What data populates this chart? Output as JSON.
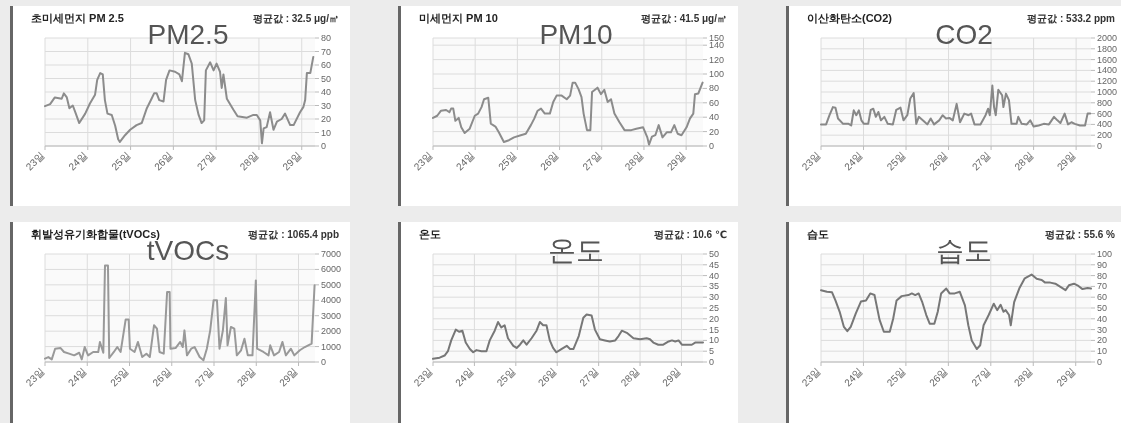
{
  "chart_data": [
    {
      "type": "line",
      "title": "초미세먼지 PM 2.5",
      "subtitle": "평균값 : 32.5 μg/㎥",
      "annotations": [
        "PM2.5"
      ],
      "xlim": [
        23,
        29.31
      ],
      "xticks": [
        {
          "value": 23,
          "label": "23일"
        },
        {
          "value": 24,
          "label": "24일"
        },
        {
          "value": 25,
          "label": "25일"
        },
        {
          "value": 26,
          "label": "26일"
        },
        {
          "value": 27,
          "label": "27일"
        },
        {
          "value": 28,
          "label": "28일"
        },
        {
          "value": 29,
          "label": "29일"
        }
      ],
      "ylim": [
        0,
        80
      ],
      "yticks": [
        0,
        10,
        20,
        30,
        40,
        50,
        60,
        70,
        80
      ],
      "grid": true,
      "x": [
        23,
        23.12,
        23.23,
        23.39,
        23.44,
        23.51,
        23.57,
        23.65,
        23.72,
        23.8,
        23.94,
        24.05,
        24.17,
        24.22,
        24.29,
        24.35,
        24.4,
        24.46,
        24.56,
        24.64,
        24.71,
        24.75,
        24.87,
        24.99,
        25.14,
        25.26,
        25.38,
        25.49,
        25.55,
        25.61,
        25.67,
        25.77,
        25.83,
        25.91,
        26.04,
        26.14,
        26.2,
        26.27,
        26.35,
        26.43,
        26.51,
        26.59,
        26.66,
        26.72,
        26.76,
        26.86,
        26.94,
        27.01,
        27.09,
        27.13,
        27.17,
        27.25,
        27.4,
        27.5,
        27.72,
        27.87,
        27.95,
        28.03,
        28.07,
        28.11,
        28.18,
        28.26,
        28.34,
        28.42,
        28.53,
        28.61,
        28.73,
        28.81,
        28.96,
        29.04,
        29.08,
        29.12,
        29.2,
        29.27
      ],
      "series": [
        {
          "color": "#8c8c8c",
          "values": [
            29.5,
            31,
            36,
            35,
            39,
            36,
            28,
            30,
            24,
            17,
            24,
            31.5,
            38,
            49,
            54,
            53,
            34,
            24,
            23,
            15,
            5,
            3,
            8,
            12,
            15.5,
            17,
            28,
            35,
            39,
            39,
            34,
            33,
            49,
            56,
            55,
            53,
            48,
            69,
            68,
            61,
            34,
            23,
            17,
            19,
            56,
            62,
            56,
            61,
            55,
            43,
            53,
            35,
            27,
            22,
            21,
            23,
            23,
            19,
            2,
            13,
            14,
            25,
            12,
            18,
            20,
            24,
            15.5,
            15.5,
            25,
            29,
            34,
            54,
            54,
            66
          ]
        }
      ]
    },
    {
      "type": "line",
      "title": "미세먼지 PM 10",
      "subtitle": "평균값 : 41.5 μg/㎥",
      "annotations": [
        "PM10"
      ],
      "xlim": [
        23,
        29.4
      ],
      "xticks": [
        {
          "value": 23,
          "label": "23일"
        },
        {
          "value": 24,
          "label": "24일"
        },
        {
          "value": 25,
          "label": "25일"
        },
        {
          "value": 26,
          "label": "26일"
        },
        {
          "value": 27,
          "label": "27일"
        },
        {
          "value": 28,
          "label": "28일"
        },
        {
          "value": 29,
          "label": "29일"
        }
      ],
      "ylim": [
        0,
        150
      ],
      "yticks": [
        0,
        20,
        40,
        60,
        80,
        100,
        120,
        140,
        150
      ],
      "grid": true,
      "x": [
        23,
        23.1,
        23.19,
        23.31,
        23.39,
        23.43,
        23.48,
        23.53,
        23.61,
        23.67,
        23.75,
        23.87,
        23.99,
        24.07,
        24.15,
        24.21,
        24.31,
        24.37,
        24.48,
        24.56,
        24.68,
        24.8,
        24.92,
        25.08,
        25.2,
        25.32,
        25.4,
        25.48,
        25.56,
        25.65,
        25.77,
        25.85,
        25.93,
        26.05,
        26.17,
        26.25,
        26.31,
        26.37,
        26.45,
        26.52,
        26.57,
        26.65,
        26.73,
        26.77,
        26.9,
        26.98,
        27.06,
        27.14,
        27.22,
        27.3,
        27.42,
        27.54,
        27.7,
        27.82,
        27.98,
        28.08,
        28.12,
        28.19,
        28.27,
        28.35,
        28.44,
        28.54,
        28.64,
        28.72,
        28.8,
        28.89,
        29.01,
        29.09,
        29.17,
        29.21,
        29.29,
        29.39
      ],
      "series": [
        {
          "color": "#8c8c8c",
          "values": [
            39,
            42,
            49,
            50,
            47,
            52,
            52,
            35,
            39,
            26,
            18,
            24,
            42,
            45,
            54,
            65,
            67,
            31,
            27,
            19,
            5.5,
            8,
            12,
            15,
            17,
            29,
            38,
            49,
            52,
            45,
            45,
            61,
            70,
            70,
            65,
            70,
            88,
            88,
            79,
            68,
            45,
            22,
            22,
            75,
            81,
            72,
            78,
            61,
            65,
            45,
            33,
            22,
            22,
            24,
            26,
            12,
            2,
            13,
            15,
            29,
            12,
            19,
            19,
            29,
            17,
            15,
            26,
            38,
            45,
            72,
            73,
            88
          ]
        }
      ]
    },
    {
      "type": "line",
      "title": "이산화탄소(CO2)",
      "subtitle": "평균값 : 533.2 ppm",
      "annotations": [
        "CO2"
      ],
      "xlim": [
        23,
        29.35
      ],
      "xticks": [
        {
          "value": 23,
          "label": "23일"
        },
        {
          "value": 24,
          "label": "24일"
        },
        {
          "value": 25,
          "label": "25일"
        },
        {
          "value": 26,
          "label": "26일"
        },
        {
          "value": 27,
          "label": "27일"
        },
        {
          "value": 28,
          "label": "28일"
        },
        {
          "value": 29,
          "label": "29일"
        }
      ],
      "ylim": [
        0,
        2000
      ],
      "yticks": [
        0,
        200,
        400,
        600,
        800,
        1000,
        1200,
        1400,
        1600,
        1800,
        2000
      ],
      "grid": true,
      "x": [
        23,
        23.12,
        23.2,
        23.28,
        23.34,
        23.4,
        23.52,
        23.65,
        23.71,
        23.77,
        23.83,
        23.89,
        23.95,
        24.01,
        24.11,
        24.17,
        24.23,
        24.29,
        24.35,
        24.41,
        24.49,
        24.57,
        24.69,
        24.77,
        24.87,
        24.94,
        25.03,
        25.1,
        25.18,
        25.24,
        25.3,
        25.42,
        25.5,
        25.58,
        25.66,
        25.78,
        25.86,
        25.94,
        26.02,
        26.1,
        26.19,
        26.27,
        26.37,
        26.47,
        26.53,
        26.61,
        26.75,
        26.87,
        26.93,
        26.97,
        27.03,
        27.07,
        27.11,
        27.17,
        27.26,
        27.29,
        27.35,
        27.42,
        27.48,
        27.6,
        27.64,
        27.72,
        27.84,
        27.92,
        28,
        28.12,
        28.24,
        28.36,
        28.48,
        28.56,
        28.63,
        28.73,
        28.81,
        28.89,
        28.97,
        29.09,
        29.21,
        29.27,
        29.33
      ],
      "series": [
        {
          "color": "#888888",
          "values": [
            400,
            400,
            570,
            720,
            710,
            510,
            410,
            410,
            380,
            660,
            570,
            660,
            475,
            410,
            410,
            670,
            690,
            540,
            630,
            475,
            540,
            410,
            400,
            670,
            710,
            475,
            570,
            880,
            980,
            410,
            540,
            460,
            400,
            510,
            400,
            475,
            570,
            510,
            520,
            475,
            780,
            440,
            600,
            570,
            600,
            400,
            400,
            570,
            690,
            570,
            1120,
            720,
            570,
            1040,
            940,
            720,
            970,
            850,
            410,
            410,
            540,
            410,
            400,
            475,
            360,
            380,
            410,
            400,
            540,
            475,
            425,
            600,
            400,
            440,
            410,
            380,
            380,
            600,
            600
          ]
        }
      ]
    },
    {
      "type": "line",
      "title": "휘발성유기화합물(tVOCs)",
      "subtitle": "평균값 : 1065.4 ppb",
      "annotations": [
        "tVOCs"
      ],
      "xlim": [
        23,
        29.39
      ],
      "xticks": [
        {
          "value": 23,
          "label": "23일"
        },
        {
          "value": 24,
          "label": "24일"
        },
        {
          "value": 25,
          "label": "25일"
        },
        {
          "value": 26,
          "label": "26일"
        },
        {
          "value": 27,
          "label": "27일"
        },
        {
          "value": 28,
          "label": "28일"
        },
        {
          "value": 29,
          "label": "29일"
        }
      ],
      "ylim": [
        0,
        7000
      ],
      "yticks": [
        0,
        1000,
        2000,
        3000,
        4000,
        5000,
        6000,
        7000
      ],
      "grid": true,
      "x": [
        23,
        23.08,
        23.16,
        23.24,
        23.37,
        23.45,
        23.57,
        23.69,
        23.81,
        23.87,
        23.94,
        24.02,
        24.14,
        24.26,
        24.3,
        24.38,
        24.42,
        24.49,
        24.52,
        24.63,
        24.71,
        24.79,
        24.91,
        24.98,
        25.01,
        25.12,
        25.2,
        25.3,
        25.4,
        25.48,
        25.58,
        25.65,
        25.71,
        25.81,
        25.89,
        25.95,
        25.97,
        26.09,
        26.2,
        26.26,
        26.3,
        26.36,
        26.46,
        26.54,
        26.66,
        26.75,
        26.83,
        26.91,
        26.99,
        27.07,
        27.13,
        27.21,
        27.28,
        27.32,
        27.4,
        27.48,
        27.54,
        27.64,
        27.72,
        27.8,
        27.91,
        27.99,
        28.02,
        28.17,
        28.29,
        28.33,
        28.42,
        28.54,
        28.62,
        28.7,
        28.82,
        28.9,
        29.03,
        29.15,
        29.23,
        29.31,
        29.38
      ],
      "series": [
        {
          "color": "#999999",
          "values": [
            220,
            320,
            170,
            860,
            900,
            650,
            540,
            430,
            600,
            170,
            970,
            430,
            650,
            650,
            1300,
            600,
            6260,
            6260,
            260,
            650,
            970,
            650,
            2760,
            2760,
            860,
            650,
            1300,
            320,
            540,
            320,
            2380,
            2160,
            650,
            540,
            4540,
            4540,
            860,
            900,
            1300,
            970,
            2050,
            430,
            860,
            970,
            320,
            110,
            860,
            2050,
            4000,
            4000,
            860,
            2050,
            4150,
            1080,
            2270,
            2160,
            430,
            760,
            1510,
            430,
            430,
            5290,
            860,
            650,
            430,
            1080,
            430,
            650,
            1300,
            430,
            860,
            430,
            760,
            970,
            1080,
            1190,
            4970
          ]
        }
      ]
    },
    {
      "type": "line",
      "title": "온도",
      "subtitle": "평균값 : 10.6 ℃",
      "annotations": [
        "온도"
      ],
      "xlim": [
        23,
        29.52
      ],
      "xticks": [
        {
          "value": 23,
          "label": "23일"
        },
        {
          "value": 24,
          "label": "24일"
        },
        {
          "value": 25,
          "label": "25일"
        },
        {
          "value": 26,
          "label": "26일"
        },
        {
          "value": 27,
          "label": "27일"
        },
        {
          "value": 28,
          "label": "28일"
        },
        {
          "value": 29,
          "label": "29일"
        }
      ],
      "ylim": [
        0,
        50
      ],
      "yticks": [
        0,
        5,
        10,
        15,
        20,
        25,
        30,
        35,
        40,
        45,
        50
      ],
      "grid": true,
      "x": [
        23,
        23.16,
        23.28,
        23.36,
        23.44,
        23.55,
        23.63,
        23.71,
        23.79,
        23.89,
        23.97,
        24.05,
        24.17,
        24.29,
        24.37,
        24.49,
        24.57,
        24.65,
        24.73,
        24.81,
        24.94,
        25.02,
        25.1,
        25.18,
        25.26,
        25.38,
        25.5,
        25.58,
        25.66,
        25.74,
        25.82,
        25.9,
        25.98,
        26.1,
        26.23,
        26.31,
        26.39,
        26.52,
        26.63,
        26.71,
        26.83,
        26.91,
        27.03,
        27.15,
        27.27,
        27.4,
        27.48,
        27.56,
        27.68,
        27.84,
        28,
        28.16,
        28.24,
        28.32,
        28.44,
        28.56,
        28.69,
        28.77,
        28.85,
        28.93,
        29.01,
        29.13,
        29.25,
        29.33,
        29.45,
        29.52
      ],
      "series": [
        {
          "color": "#777777",
          "values": [
            1.5,
            2,
            3,
            5,
            10,
            15,
            14,
            14.5,
            9,
            6,
            4.5,
            5.5,
            5,
            5,
            10,
            14.5,
            18.5,
            16,
            17,
            11,
            7.5,
            6.5,
            8,
            10,
            8,
            11,
            14.5,
            18.5,
            17,
            17,
            10,
            6.5,
            4.5,
            6,
            7.5,
            6,
            6,
            12,
            20.5,
            22,
            21.5,
            15,
            10.5,
            10,
            9.5,
            10,
            12,
            14.5,
            13.5,
            11,
            10.5,
            11,
            10.5,
            9,
            8,
            8,
            9.5,
            10,
            9.5,
            10,
            8,
            8,
            8,
            9,
            9,
            9
          ]
        }
      ]
    },
    {
      "type": "line",
      "title": "습도",
      "subtitle": "평균값 : 55.6 %",
      "annotations": [
        "습도"
      ],
      "xlim": [
        23,
        29.36
      ],
      "xticks": [
        {
          "value": 23,
          "label": "23일"
        },
        {
          "value": 24,
          "label": "24일"
        },
        {
          "value": 25,
          "label": "25일"
        },
        {
          "value": 26,
          "label": "26일"
        },
        {
          "value": 27,
          "label": "27일"
        },
        {
          "value": 28,
          "label": "28일"
        },
        {
          "value": 29,
          "label": "29일"
        }
      ],
      "ylim": [
        0,
        100
      ],
      "yticks": [
        0,
        10,
        20,
        30,
        40,
        50,
        60,
        70,
        80,
        90,
        100
      ],
      "grid": true,
      "x": [
        23,
        23.14,
        23.26,
        23.34,
        23.44,
        23.54,
        23.62,
        23.7,
        23.82,
        23.94,
        24.06,
        24.16,
        24.26,
        24.38,
        24.48,
        24.62,
        24.7,
        24.78,
        24.9,
        25.06,
        25.14,
        25.22,
        25.3,
        25.38,
        25.48,
        25.56,
        25.67,
        25.75,
        25.83,
        25.95,
        26.03,
        26.15,
        26.27,
        26.39,
        26.47,
        26.55,
        26.67,
        26.75,
        26.83,
        26.95,
        27.07,
        27.15,
        27.23,
        27.3,
        27.35,
        27.43,
        27.47,
        27.55,
        27.67,
        27.8,
        27.96,
        28.08,
        28.2,
        28.28,
        28.4,
        28.52,
        28.64,
        28.76,
        28.84,
        28.96,
        29.04,
        29.16,
        29.28,
        29.36
      ],
      "series": [
        {
          "color": "#777777",
          "values": [
            66.5,
            65,
            64.5,
            57,
            46.5,
            32.5,
            28.5,
            32.5,
            45,
            56,
            57,
            63.5,
            62,
            39,
            28,
            28,
            40,
            57,
            61,
            62,
            63.5,
            62,
            63.5,
            56,
            43.5,
            35.5,
            35.5,
            46.5,
            63.5,
            68,
            63.5,
            63.5,
            65,
            52.5,
            34,
            20,
            12,
            15.5,
            34,
            43.5,
            54,
            48,
            53,
            46.5,
            48,
            43.5,
            34,
            55.5,
            68,
            77.5,
            81,
            77,
            76,
            73.5,
            73.5,
            72.5,
            69.5,
            66.5,
            71,
            72.5,
            71,
            67.5,
            68.5,
            68
          ]
        }
      ]
    }
  ]
}
